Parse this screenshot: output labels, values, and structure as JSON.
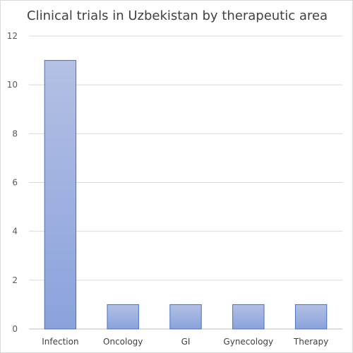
{
  "chart_data": {
    "type": "bar",
    "title": "Clinical trials in Uzbekistan by therapeutic area",
    "xlabel": "",
    "ylabel": "",
    "categories": [
      "Infection",
      "Oncology",
      "GI",
      "Gynecology",
      "Therapy"
    ],
    "values": [
      11,
      1,
      1,
      1,
      1
    ],
    "ylim": [
      0,
      12
    ],
    "yticks": [
      0,
      2,
      4,
      6,
      8,
      10,
      12
    ],
    "grid": true,
    "legend": "none",
    "bar_color_top": "#b4c0e4",
    "bar_color_bottom": "#8aa2dc",
    "bar_border": "#4472c4"
  }
}
